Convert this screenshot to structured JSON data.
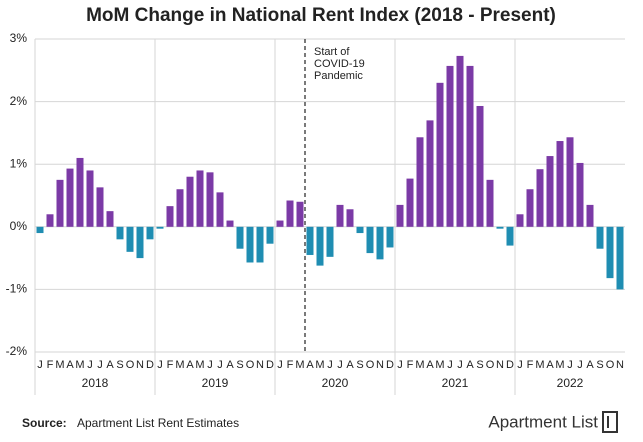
{
  "chart_data": {
    "type": "bar",
    "title": "MoM Change in National Rent Index (2018 - Present)",
    "color": "#7b3aa6",
    "negative_color": "#1f8db2",
    "ylim": [
      -2,
      3
    ],
    "yticks": [
      {
        "value": -2,
        "label": "-2%"
      },
      {
        "value": -1,
        "label": "-1%"
      },
      {
        "value": 0,
        "label": "0%"
      },
      {
        "value": 1,
        "label": "1%"
      },
      {
        "value": 2,
        "label": "2%"
      },
      {
        "value": 3,
        "label": "3%"
      }
    ],
    "grid": true,
    "groups": [
      {
        "name": "2018",
        "categories": [
          "J",
          "F",
          "M",
          "A",
          "M",
          "J",
          "J",
          "A",
          "S",
          "O",
          "N",
          "D"
        ],
        "values": [
          -0.1,
          0.2,
          0.75,
          0.93,
          1.1,
          0.9,
          0.63,
          0.25,
          -0.2,
          -0.4,
          -0.5,
          -0.2
        ]
      },
      {
        "name": "2019",
        "categories": [
          "J",
          "F",
          "M",
          "A",
          "M",
          "J",
          "J",
          "A",
          "S",
          "O",
          "N",
          "D"
        ],
        "values": [
          -0.03,
          0.33,
          0.6,
          0.8,
          0.9,
          0.87,
          0.55,
          0.1,
          -0.35,
          -0.57,
          -0.57,
          -0.27
        ]
      },
      {
        "name": "2020",
        "categories": [
          "J",
          "F",
          "M",
          "A",
          "M",
          "J",
          "J",
          "A",
          "S",
          "O",
          "N",
          "D"
        ],
        "values": [
          0.1,
          0.42,
          0.4,
          -0.45,
          -0.62,
          -0.48,
          0.35,
          0.28,
          -0.1,
          -0.42,
          -0.52,
          -0.33
        ]
      },
      {
        "name": "2021",
        "categories": [
          "J",
          "F",
          "M",
          "A",
          "M",
          "J",
          "J",
          "A",
          "S",
          "O",
          "N",
          "D"
        ],
        "values": [
          0.35,
          0.77,
          1.43,
          1.7,
          2.3,
          2.57,
          2.73,
          2.57,
          1.93,
          0.75,
          -0.03,
          -0.3
        ]
      },
      {
        "name": "2022",
        "categories": [
          "J",
          "F",
          "M",
          "A",
          "M",
          "J",
          "J",
          "A",
          "S",
          "O",
          "N"
        ],
        "values": [
          0.2,
          0.6,
          0.92,
          1.13,
          1.37,
          1.43,
          1.02,
          0.35,
          -0.35,
          -0.82,
          -1.0
        ]
      }
    ],
    "annotation": [
      "Start of",
      "COVID-19",
      "Pandemic"
    ],
    "source_label": "Source:",
    "source": "Apartment List Rent Estimates",
    "logo": "Apartment List"
  }
}
